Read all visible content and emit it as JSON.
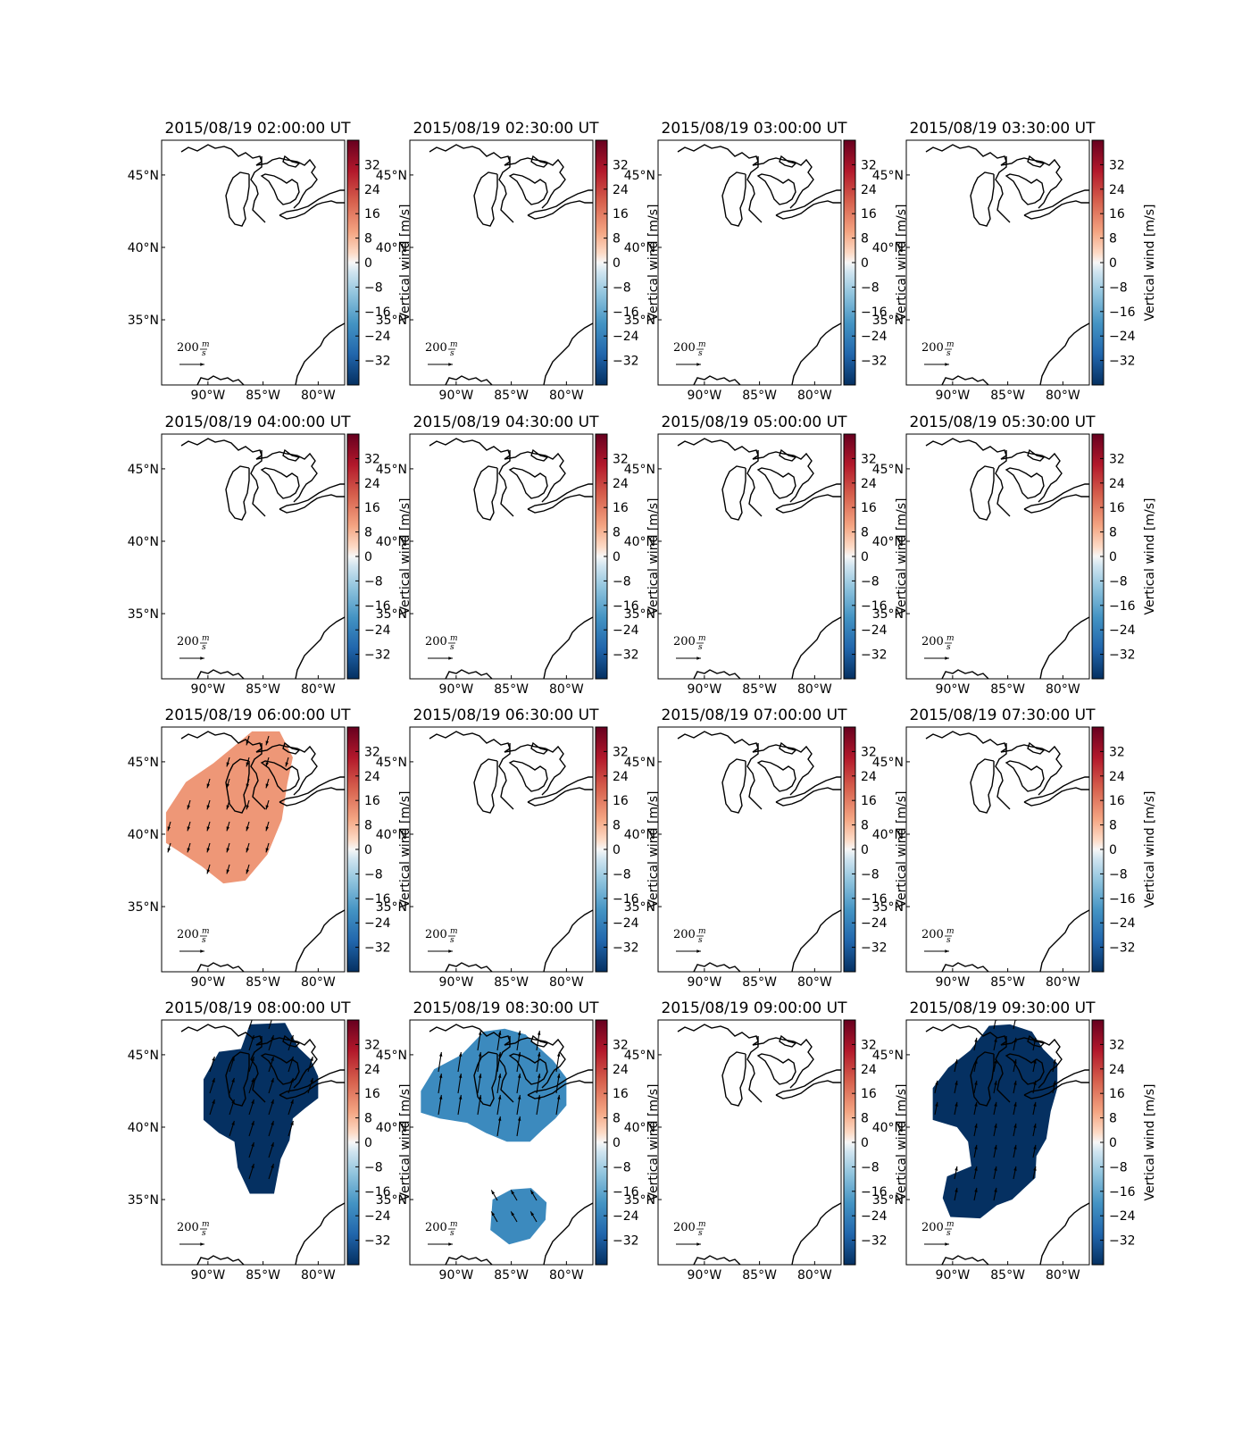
{
  "chart_data": {
    "type": "heatmap",
    "layout": "4x4 small multiples",
    "projection": "map of eastern United States / Great Lakes",
    "lon_range": [
      -94.2,
      -77.6
    ],
    "lat_range": [
      30.5,
      47.4
    ],
    "x_ticks": [
      "90°W",
      "85°W",
      "80°W"
    ],
    "x_tick_values": [
      -90,
      -85,
      -80
    ],
    "y_ticks": [
      "45°N",
      "40°N",
      "35°N"
    ],
    "y_tick_values": [
      45,
      40,
      35
    ],
    "colorbar": {
      "label": "Vertical wind [m/s]",
      "range": [
        -40,
        40
      ],
      "ticks": [
        "32",
        "24",
        "16",
        "8",
        "0",
        "−8",
        "−16",
        "−24",
        "−32"
      ],
      "tick_values": [
        32,
        24,
        16,
        8,
        0,
        -8,
        -16,
        -24,
        -32
      ],
      "colormap": "RdBu_r"
    },
    "quiver_key": {
      "label": "200",
      "unit_num": "m",
      "unit_den": "s",
      "value": 200
    },
    "panels": [
      {
        "title": "2015/08/19 02:00:00 UT",
        "value": null,
        "regions": []
      },
      {
        "title": "2015/08/19 02:30:00 UT",
        "value": null,
        "regions": []
      },
      {
        "title": "2015/08/19 03:00:00 UT",
        "value": null,
        "regions": []
      },
      {
        "title": "2015/08/19 03:30:00 UT",
        "value": null,
        "regions": []
      },
      {
        "title": "2015/08/19 04:00:00 UT",
        "value": null,
        "regions": []
      },
      {
        "title": "2015/08/19 04:30:00 UT",
        "value": null,
        "regions": []
      },
      {
        "title": "2015/08/19 05:00:00 UT",
        "value": null,
        "regions": []
      },
      {
        "title": "2015/08/19 05:30:00 UT",
        "value": null,
        "regions": []
      },
      {
        "title": "2015/08/19 06:00:00 UT",
        "value": 12,
        "regions": [
          {
            "points": [
              [
                -93.8,
                41.5
              ],
              [
                -92,
                43.6
              ],
              [
                -89.5,
                44.9
              ],
              [
                -86,
                47.1
              ],
              [
                -83.5,
                47.1
              ],
              [
                -82.3,
                45.3
              ],
              [
                -82.8,
                43.5
              ],
              [
                -83.3,
                41
              ],
              [
                -84.6,
                38.6
              ],
              [
                -86.6,
                36.8
              ],
              [
                -88.6,
                36.6
              ],
              [
                -90.6,
                37.8
              ],
              [
                -93.8,
                39.4
              ]
            ],
            "wind_dir": [
              -0.28,
              0.96
            ],
            "wind_speed": 120
          }
        ]
      },
      {
        "title": "2015/08/19 06:30:00 UT",
        "value": null,
        "regions": []
      },
      {
        "title": "2015/08/19 07:00:00 UT",
        "value": null,
        "regions": []
      },
      {
        "title": "2015/08/19 07:30:00 UT",
        "value": null,
        "regions": []
      },
      {
        "title": "2015/08/19 08:00:00 UT",
        "value": -40,
        "regions": [
          {
            "points": [
              [
                -90.4,
                43.3
              ],
              [
                -89,
                45.2
              ],
              [
                -87,
                45.4
              ],
              [
                -86.2,
                47.1
              ],
              [
                -83,
                47.2
              ],
              [
                -81.8,
                45.5
              ],
              [
                -80.7,
                44.7
              ],
              [
                -80,
                43.5
              ],
              [
                -80,
                42
              ],
              [
                -81.2,
                41.3
              ],
              [
                -82.3,
                40.6
              ],
              [
                -82.6,
                39.1
              ],
              [
                -83.4,
                37.8
              ],
              [
                -84,
                35.4
              ],
              [
                -86.2,
                35.4
              ],
              [
                -87.3,
                37.2
              ],
              [
                -87.6,
                39
              ],
              [
                -89,
                39.6
              ],
              [
                -90.4,
                40.5
              ]
            ],
            "wind_dir": [
              0.3,
              -0.95
            ],
            "wind_speed": 200
          }
        ]
      },
      {
        "title": "2015/08/19 08:30:00 UT",
        "value": -22,
        "regions": [
          {
            "points": [
              [
                -93.2,
                42.5
              ],
              [
                -92,
                44
              ],
              [
                -89.5,
                45
              ],
              [
                -87.5,
                46.6
              ],
              [
                -85.6,
                46.8
              ],
              [
                -83.7,
                46.4
              ],
              [
                -82.5,
                45.5
              ],
              [
                -81.2,
                44.6
              ],
              [
                -80,
                43.4
              ],
              [
                -80,
                41.5
              ],
              [
                -81,
                40.6
              ],
              [
                -82.2,
                39.8
              ],
              [
                -83.3,
                39
              ],
              [
                -85.4,
                39
              ],
              [
                -87.3,
                39.6
              ],
              [
                -89,
                40.3
              ],
              [
                -91.5,
                40.6
              ],
              [
                -93.2,
                41
              ]
            ],
            "wind_dir": [
              0.15,
              -0.98
            ],
            "wind_speed": 250
          },
          {
            "points": [
              [
                -86.7,
                35
              ],
              [
                -85,
                35.7
              ],
              [
                -83.2,
                35.8
              ],
              [
                -81.8,
                34.8
              ],
              [
                -81.9,
                33.6
              ],
              [
                -83.3,
                32.3
              ],
              [
                -85.2,
                31.9
              ],
              [
                -86.9,
                32.9
              ]
            ],
            "wind_dir": [
              -0.5,
              -0.86
            ],
            "wind_speed": 150
          }
        ]
      },
      {
        "title": "2015/08/19 09:00:00 UT",
        "value": null,
        "regions": []
      },
      {
        "title": "2015/08/19 09:30:00 UT",
        "value": -40,
        "regions": [
          {
            "points": [
              [
                -91.8,
                42.7
              ],
              [
                -90.4,
                44.1
              ],
              [
                -88.4,
                45.3
              ],
              [
                -86.7,
                47
              ],
              [
                -84.8,
                47.1
              ],
              [
                -82.8,
                46.6
              ],
              [
                -81.8,
                45.4
              ],
              [
                -80.5,
                44.4
              ],
              [
                -80.5,
                42.7
              ],
              [
                -81.1,
                41.1
              ],
              [
                -81.5,
                39.2
              ],
              [
                -82.4,
                38
              ],
              [
                -82.5,
                36.5
              ],
              [
                -84.6,
                35
              ],
              [
                -86,
                34.6
              ],
              [
                -87.5,
                33.7
              ],
              [
                -90.2,
                33.8
              ],
              [
                -90.9,
                35.1
              ],
              [
                -90.5,
                36.6
              ],
              [
                -88.3,
                37.3
              ],
              [
                -88.6,
                39
              ],
              [
                -89.6,
                40
              ],
              [
                -91.8,
                40.5
              ]
            ],
            "wind_dir": [
              0.2,
              -0.98
            ],
            "wind_speed": 160
          }
        ]
      }
    ]
  }
}
